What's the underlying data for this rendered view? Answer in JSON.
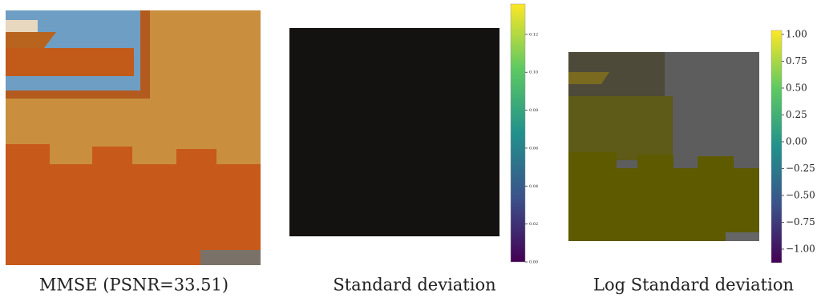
{
  "figure": {
    "panels": [
      {
        "caption": "MMSE (PSNR=33.51)"
      },
      {
        "caption": "Standard deviation",
        "colorbar": {
          "lim": [
            0,
            0.136
          ],
          "ticks": [
            {
              "value": 0,
              "label": "0.00"
            },
            {
              "value": 0.02,
              "label": "0.02"
            },
            {
              "value": 0.04,
              "label": "0.04"
            },
            {
              "value": 0.06,
              "label": "0.06"
            },
            {
              "value": 0.08,
              "label": "0.08"
            },
            {
              "value": 0.1,
              "label": "0.10"
            },
            {
              "value": 0.12,
              "label": "0.12"
            }
          ]
        }
      },
      {
        "caption": "Log Standard deviation",
        "colorbar": {
          "lim": [
            -1.127,
            1.037
          ],
          "ticks": [
            {
              "value": -1,
              "label": "−1.00"
            },
            {
              "value": -0.75,
              "label": "−0.75"
            },
            {
              "value": -0.5,
              "label": "−0.50"
            },
            {
              "value": -0.25,
              "label": "−0.25"
            },
            {
              "value": 0,
              "label": "0.00"
            },
            {
              "value": 0.25,
              "label": "0.25"
            },
            {
              "value": 0.5,
              "label": "0.50"
            },
            {
              "value": 0.75,
              "label": "0.75"
            },
            {
              "value": 1,
              "label": "1.00"
            }
          ]
        }
      }
    ]
  }
}
